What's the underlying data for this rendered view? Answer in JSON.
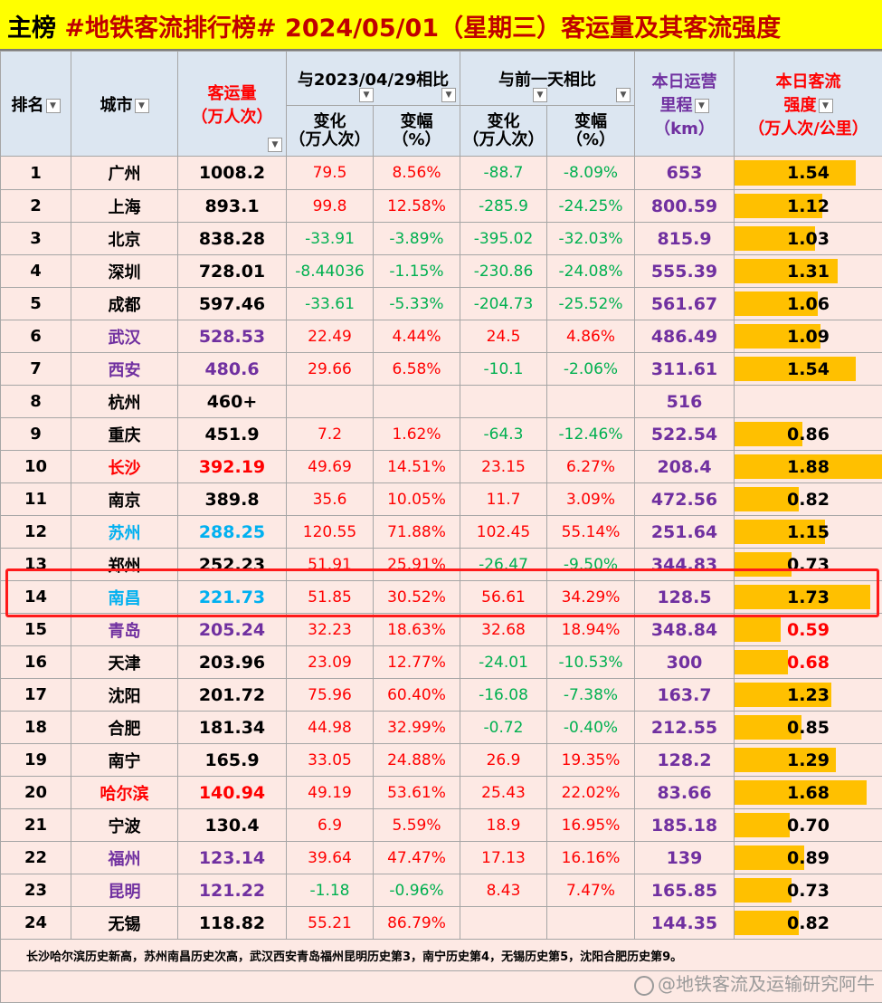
{
  "title": {
    "main": "主榜",
    "text": "#地铁客流排行榜# 2024/05/01（星期三）客运量及其客流强度"
  },
  "headers": {
    "rank": "排名",
    "city": "城市",
    "volume_line1": "客运量",
    "volume_line2": "（万人次）",
    "vs_2023": "与2023/04/29相比",
    "vs_prev": "与前一天相比",
    "change_line1": "变化",
    "change_line2": "（万人次）",
    "pct_line1": "变幅",
    "pct_line2": "（%）",
    "km_line1": "本日运营",
    "km_line2": "里程",
    "km_line3": "（km）",
    "intensity_line1": "本日客流",
    "intensity_line2": "强度",
    "intensity_line3": "（万人次/公里）"
  },
  "dropdown_icon": "dropdown-arrow-icon",
  "colors": {
    "title_bg": "#ffff00",
    "header_bg": "#dce6f1",
    "row_bg": "#fde9e4",
    "bar": "#ffc000",
    "positive": "#ff0000",
    "negative": "#00b050",
    "km": "#7030a0",
    "highlight_box": "#ff1a1a"
  },
  "rows": [
    {
      "rank": "1",
      "city": "广州",
      "city_color": "black",
      "volume": "1008.2",
      "c23": "79.5",
      "p23": "8.56%",
      "cp": "-88.7",
      "pp": "-8.09%",
      "km": "653",
      "intensity": "1.54",
      "intensity_value": 1.54
    },
    {
      "rank": "2",
      "city": "上海",
      "city_color": "black",
      "volume": "893.1",
      "c23": "99.8",
      "p23": "12.58%",
      "cp": "-285.9",
      "pp": "-24.25%",
      "km": "800.59",
      "intensity": "1.12",
      "intensity_value": 1.12
    },
    {
      "rank": "3",
      "city": "北京",
      "city_color": "black",
      "volume": "838.28",
      "c23": "-33.91",
      "p23": "-3.89%",
      "cp": "-395.02",
      "pp": "-32.03%",
      "km": "815.9",
      "intensity": "1.03",
      "intensity_value": 1.03
    },
    {
      "rank": "4",
      "city": "深圳",
      "city_color": "black",
      "volume": "728.01",
      "c23": "-8.44036",
      "p23": "-1.15%",
      "cp": "-230.86",
      "pp": "-24.08%",
      "km": "555.39",
      "intensity": "1.31",
      "intensity_value": 1.31
    },
    {
      "rank": "5",
      "city": "成都",
      "city_color": "black",
      "volume": "597.46",
      "c23": "-33.61",
      "p23": "-5.33%",
      "cp": "-204.73",
      "pp": "-25.52%",
      "km": "561.67",
      "intensity": "1.06",
      "intensity_value": 1.06
    },
    {
      "rank": "6",
      "city": "武汉",
      "city_color": "purple",
      "volume": "528.53",
      "c23": "22.49",
      "p23": "4.44%",
      "cp": "24.5",
      "pp": "4.86%",
      "km": "486.49",
      "intensity": "1.09",
      "intensity_value": 1.09
    },
    {
      "rank": "7",
      "city": "西安",
      "city_color": "purple",
      "volume": "480.6",
      "c23": "29.66",
      "p23": "6.58%",
      "cp": "-10.1",
      "pp": "-2.06%",
      "km": "311.61",
      "intensity": "1.54",
      "intensity_value": 1.54
    },
    {
      "rank": "8",
      "city": "杭州",
      "city_color": "black",
      "volume": "460+",
      "c23": "",
      "p23": "",
      "cp": "",
      "pp": "",
      "km": "516",
      "intensity": "",
      "intensity_value": 0
    },
    {
      "rank": "9",
      "city": "重庆",
      "city_color": "black",
      "volume": "451.9",
      "c23": "7.2",
      "p23": "1.62%",
      "cp": "-64.3",
      "pp": "-12.46%",
      "km": "522.54",
      "intensity": "0.86",
      "intensity_value": 0.86
    },
    {
      "rank": "10",
      "city": "长沙",
      "city_color": "red",
      "volume": "392.19",
      "c23": "49.69",
      "p23": "14.51%",
      "cp": "23.15",
      "pp": "6.27%",
      "km": "208.4",
      "intensity": "1.88",
      "intensity_value": 1.88
    },
    {
      "rank": "11",
      "city": "南京",
      "city_color": "black",
      "volume": "389.8",
      "c23": "35.6",
      "p23": "10.05%",
      "cp": "11.7",
      "pp": "3.09%",
      "km": "472.56",
      "intensity": "0.82",
      "intensity_value": 0.82
    },
    {
      "rank": "12",
      "city": "苏州",
      "city_color": "blue",
      "volume": "288.25",
      "c23": "120.55",
      "p23": "71.88%",
      "cp": "102.45",
      "pp": "55.14%",
      "km": "251.64",
      "intensity": "1.15",
      "intensity_value": 1.15
    },
    {
      "rank": "13",
      "city": "郑州",
      "city_color": "black",
      "volume": "252.23",
      "c23": "51.91",
      "p23": "25.91%",
      "cp": "-26.47",
      "pp": "-9.50%",
      "km": "344.83",
      "intensity": "0.73",
      "intensity_value": 0.73
    },
    {
      "rank": "14",
      "city": "南昌",
      "city_color": "blue",
      "volume": "221.73",
      "c23": "51.85",
      "p23": "30.52%",
      "cp": "56.61",
      "pp": "34.29%",
      "km": "128.5",
      "intensity": "1.73",
      "intensity_value": 1.73
    },
    {
      "rank": "15",
      "city": "青岛",
      "city_color": "purple",
      "volume": "205.24",
      "c23": "32.23",
      "p23": "18.63%",
      "cp": "32.68",
      "pp": "18.94%",
      "km": "348.84",
      "intensity": "0.59",
      "intensity_value": 0.59
    },
    {
      "rank": "16",
      "city": "天津",
      "city_color": "black",
      "volume": "203.96",
      "c23": "23.09",
      "p23": "12.77%",
      "cp": "-24.01",
      "pp": "-10.53%",
      "km": "300",
      "intensity": "0.68",
      "intensity_value": 0.68
    },
    {
      "rank": "17",
      "city": "沈阳",
      "city_color": "black",
      "volume": "201.72",
      "c23": "75.96",
      "p23": "60.40%",
      "cp": "-16.08",
      "pp": "-7.38%",
      "km": "163.7",
      "intensity": "1.23",
      "intensity_value": 1.23
    },
    {
      "rank": "18",
      "city": "合肥",
      "city_color": "black",
      "volume": "181.34",
      "c23": "44.98",
      "p23": "32.99%",
      "cp": "-0.72",
      "pp": "-0.40%",
      "km": "212.55",
      "intensity": "0.85",
      "intensity_value": 0.85
    },
    {
      "rank": "19",
      "city": "南宁",
      "city_color": "black",
      "volume": "165.9",
      "c23": "33.05",
      "p23": "24.88%",
      "cp": "26.9",
      "pp": "19.35%",
      "km": "128.2",
      "intensity": "1.29",
      "intensity_value": 1.29
    },
    {
      "rank": "20",
      "city": "哈尔滨",
      "city_color": "red",
      "volume": "140.94",
      "c23": "49.19",
      "p23": "53.61%",
      "cp": "25.43",
      "pp": "22.02%",
      "km": "83.66",
      "intensity": "1.68",
      "intensity_value": 1.68
    },
    {
      "rank": "21",
      "city": "宁波",
      "city_color": "black",
      "volume": "130.4",
      "c23": "6.9",
      "p23": "5.59%",
      "cp": "18.9",
      "pp": "16.95%",
      "km": "185.18",
      "intensity": "0.70",
      "intensity_value": 0.7
    },
    {
      "rank": "22",
      "city": "福州",
      "city_color": "purple",
      "volume": "123.14",
      "c23": "39.64",
      "p23": "47.47%",
      "cp": "17.13",
      "pp": "16.16%",
      "km": "139",
      "intensity": "0.89",
      "intensity_value": 0.89
    },
    {
      "rank": "23",
      "city": "昆明",
      "city_color": "purple",
      "volume": "121.22",
      "c23": "-1.18",
      "p23": "-0.96%",
      "cp": "8.43",
      "pp": "7.47%",
      "km": "165.85",
      "intensity": "0.73",
      "intensity_value": 0.73
    },
    {
      "rank": "24",
      "city": "无锡",
      "city_color": "black",
      "volume": "118.82",
      "c23": "55.21",
      "p23": "86.79%",
      "cp": "",
      "pp": "",
      "km": "144.35",
      "intensity": "0.82",
      "intensity_value": 0.82
    }
  ],
  "intensity_scale_max": 1.88,
  "highlighted_rank": "14",
  "footnote": "长沙哈尔滨历史新高，苏州南昌历史次高，武汉西安青岛福州昆明历史第3，南宁历史第4，无锡历史第5，沈阳合肥历史第9。",
  "watermark": "@地铁客流及运输研究阿牛"
}
